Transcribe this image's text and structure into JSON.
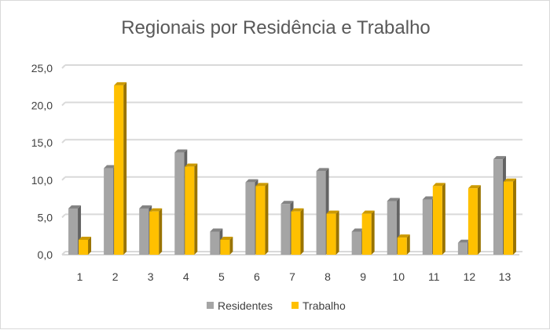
{
  "chart_data": {
    "type": "bar",
    "title": "Regionais por Residência e Trabalho",
    "xlabel": "",
    "ylabel": "",
    "categories": [
      "1",
      "2",
      "3",
      "4",
      "5",
      "6",
      "7",
      "8",
      "9",
      "10",
      "11",
      "12",
      "13"
    ],
    "series": [
      {
        "name": "Residentes",
        "color": "#a5a5a5",
        "values": [
          6.2,
          11.6,
          6.2,
          13.7,
          3.1,
          9.7,
          6.8,
          11.2,
          3.1,
          7.2,
          7.4,
          1.6,
          12.8
        ]
      },
      {
        "name": "Trabalho",
        "color": "#ffc000",
        "values": [
          2.0,
          22.7,
          5.8,
          11.8,
          2.0,
          9.2,
          5.8,
          5.5,
          5.5,
          2.3,
          9.2,
          8.9,
          9.8
        ]
      }
    ],
    "ylim": [
      0,
      25
    ],
    "yticks": [
      "0,0",
      "5,0",
      "10,0",
      "15,0",
      "20,0",
      "25,0"
    ],
    "grid": true,
    "legend_position": "bottom"
  }
}
